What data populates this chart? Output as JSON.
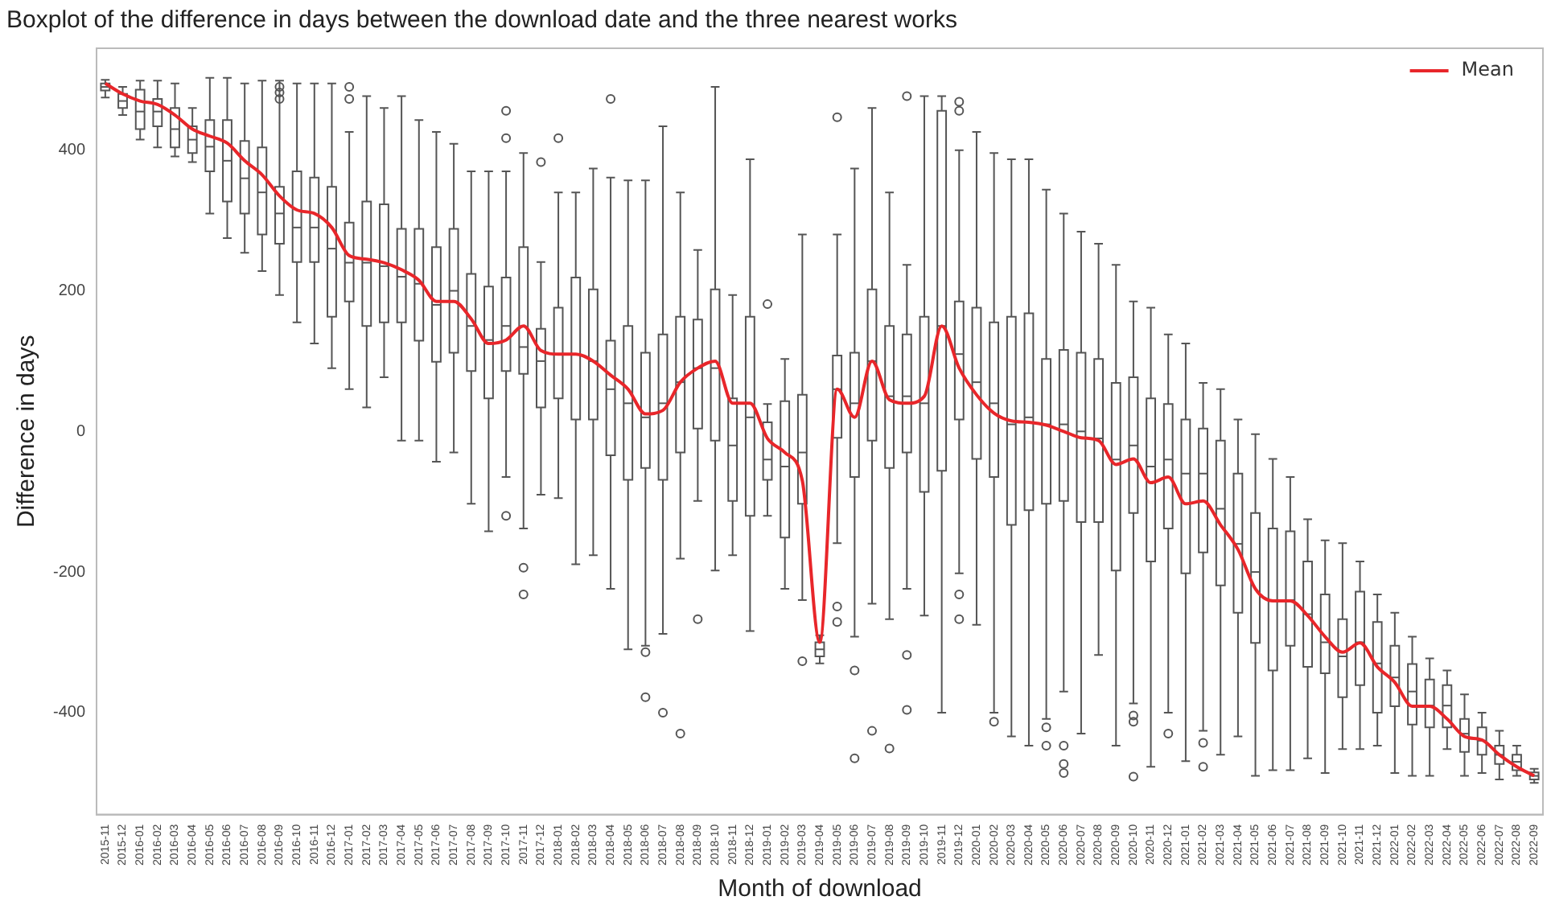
{
  "chart_data": {
    "type": "box",
    "title": "Boxplot of the difference in days between the download date and the three nearest works",
    "xlabel": "Month of download",
    "ylabel": "Difference in days",
    "categories": [
      "2015-11",
      "2015-12",
      "2016-01",
      "2016-02",
      "2016-03",
      "2016-04",
      "2016-05",
      "2016-06",
      "2016-07",
      "2016-08",
      "2016-09",
      "2016-10",
      "2016-11",
      "2016-12",
      "2017-01",
      "2017-02",
      "2017-03",
      "2017-04",
      "2017-05",
      "2017-06",
      "2017-07",
      "2017-08",
      "2017-09",
      "2017-10",
      "2017-11",
      "2017-12",
      "2018-01",
      "2018-02",
      "2018-03",
      "2018-04",
      "2018-05",
      "2018-06",
      "2018-07",
      "2018-08",
      "2018-09",
      "2018-10",
      "2018-11",
      "2018-12",
      "2019-01",
      "2019-02",
      "2019-03",
      "2019-04",
      "2019-05",
      "2019-06",
      "2019-07",
      "2019-08",
      "2019-09",
      "2019-10",
      "2019-11",
      "2019-12",
      "2020-01",
      "2020-02",
      "2020-03",
      "2020-04",
      "2020-05",
      "2020-06",
      "2020-07",
      "2020-08",
      "2020-09",
      "2020-10",
      "2020-11",
      "2020-12",
      "2021-01",
      "2021-02",
      "2021-03",
      "2021-04",
      "2021-05",
      "2021-06",
      "2021-07",
      "2021-08",
      "2021-09",
      "2021-10",
      "2021-11",
      "2021-12",
      "2022-01",
      "2022-02",
      "2022-03",
      "2022-04",
      "2022-05",
      "2022-06",
      "2022-07",
      "2022-08",
      "2022-09"
    ],
    "ylim": [
      -545,
      545
    ],
    "yticks": [
      -400,
      -200,
      0,
      200,
      400
    ],
    "legend": "top right",
    "series": [
      {
        "type": "box",
        "color": "#555555",
        "boxes": [
          {
            "low": 475,
            "q1": 485,
            "median": 490,
            "q3": 495,
            "high": 500
          },
          {
            "low": 450,
            "q1": 460,
            "median": 470,
            "q3": 480,
            "high": 490
          },
          {
            "low": 415,
            "q1": 430,
            "median": 455,
            "q3": 486,
            "high": 499
          },
          {
            "low": 404,
            "q1": 434,
            "median": 455,
            "q3": 473,
            "high": 499
          },
          {
            "low": 391,
            "q1": 404,
            "median": 430,
            "q3": 460,
            "high": 495
          },
          {
            "low": 383,
            "q1": 396,
            "median": 415,
            "q3": 434,
            "high": 460
          },
          {
            "low": 310,
            "q1": 370,
            "median": 405,
            "q3": 443,
            "high": 503
          },
          {
            "low": 275,
            "q1": 327,
            "median": 385,
            "q3": 443,
            "high": 503
          },
          {
            "low": 254,
            "q1": 310,
            "median": 360,
            "q3": 413,
            "high": 495
          },
          {
            "low": 228,
            "q1": 280,
            "median": 340,
            "q3": 404,
            "high": 499
          },
          {
            "low": 194,
            "q1": 267,
            "median": 310,
            "q3": 348,
            "high": 499,
            "outliers": [
              490,
              482,
              473
            ]
          },
          {
            "low": 155,
            "q1": 241,
            "median": 290,
            "q3": 370,
            "high": 495
          },
          {
            "low": 125,
            "q1": 241,
            "median": 290,
            "q3": 361,
            "high": 495
          },
          {
            "low": 90,
            "q1": 163,
            "median": 260,
            "q3": 348,
            "high": 495
          },
          {
            "low": 60,
            "q1": 185,
            "median": 240,
            "q3": 297,
            "high": 426,
            "outliers": [
              490,
              473
            ]
          },
          {
            "low": 34,
            "q1": 150,
            "median": 240,
            "q3": 327,
            "high": 477
          },
          {
            "low": 77,
            "q1": 155,
            "median": 235,
            "q3": 323,
            "high": 460
          },
          {
            "low": -13,
            "q1": 155,
            "median": 220,
            "q3": 288,
            "high": 477
          },
          {
            "low": -13,
            "q1": 129,
            "median": 210,
            "q3": 288,
            "high": 443
          },
          {
            "low": -43,
            "q1": 99,
            "median": 180,
            "q3": 262,
            "high": 426
          },
          {
            "low": -30,
            "q1": 112,
            "median": 200,
            "q3": 288,
            "high": 409
          },
          {
            "low": -103,
            "q1": 86,
            "median": 150,
            "q3": 224,
            "high": 370
          },
          {
            "low": -142,
            "q1": 47,
            "median": 130,
            "q3": 206,
            "high": 370
          },
          {
            "low": -65,
            "q1": 86,
            "median": 150,
            "q3": 219,
            "high": 370,
            "outliers": [
              456,
              417,
              -120
            ]
          },
          {
            "low": -138,
            "q1": 82,
            "median": 120,
            "q3": 262,
            "high": 396,
            "outliers": [
              -194,
              -232
            ]
          },
          {
            "low": -90,
            "q1": 34,
            "median": 100,
            "q3": 146,
            "high": 241,
            "outliers": [
              383
            ]
          },
          {
            "low": -95,
            "q1": 47,
            "median": 110,
            "q3": 176,
            "high": 340,
            "outliers": [
              417
            ]
          },
          {
            "low": -189,
            "q1": 17,
            "median": 110,
            "q3": 219,
            "high": 340
          },
          {
            "low": -176,
            "q1": 17,
            "median": 100,
            "q3": 202,
            "high": 374
          },
          {
            "low": -224,
            "q1": -34,
            "median": 60,
            "q3": 129,
            "high": 361,
            "outliers": [
              473
            ]
          },
          {
            "low": -310,
            "q1": -69,
            "median": 40,
            "q3": 150,
            "high": 357
          },
          {
            "low": -305,
            "q1": -52,
            "median": 20,
            "q3": 112,
            "high": 357,
            "outliers": [
              -314,
              -378
            ]
          },
          {
            "low": -288,
            "q1": -69,
            "median": 40,
            "q3": 138,
            "high": 434,
            "outliers": [
              -400
            ]
          },
          {
            "low": -181,
            "q1": -30,
            "median": 70,
            "q3": 163,
            "high": 340,
            "outliers": [
              -430
            ]
          },
          {
            "low": -99,
            "q1": 4,
            "median": 90,
            "q3": 159,
            "high": 258,
            "outliers": [
              -267
            ]
          },
          {
            "low": -198,
            "q1": -13,
            "median": 90,
            "q3": 202,
            "high": 490
          },
          {
            "low": -176,
            "q1": -99,
            "median": -20,
            "q3": 47,
            "high": 194
          },
          {
            "low": -284,
            "q1": -120,
            "median": 20,
            "q3": 163,
            "high": 387
          },
          {
            "low": -120,
            "q1": -69,
            "median": -40,
            "q3": 13,
            "high": 39,
            "outliers": [
              181
            ]
          },
          {
            "low": -224,
            "q1": -151,
            "median": -50,
            "q3": 43,
            "high": 103
          },
          {
            "low": -240,
            "q1": -103,
            "median": -30,
            "q3": 52,
            "high": 280,
            "outliers": [
              -327
            ]
          },
          {
            "low": -330,
            "q1": -320,
            "median": -310,
            "q3": -300,
            "high": -290
          },
          {
            "low": -159,
            "q1": -9,
            "median": 60,
            "q3": 108,
            "high": 280,
            "outliers": [
              447,
              -249,
              -271
            ]
          },
          {
            "low": -292,
            "q1": -65,
            "median": 40,
            "q3": 112,
            "high": 374,
            "outliers": [
              -340,
              -465
            ]
          },
          {
            "low": -245,
            "q1": -13,
            "median": 100,
            "q3": 202,
            "high": 460,
            "outliers": [
              -426
            ]
          },
          {
            "low": -267,
            "q1": -52,
            "median": 50,
            "q3": 150,
            "high": 340,
            "outliers": [
              -451
            ]
          },
          {
            "low": -224,
            "q1": -30,
            "median": 50,
            "q3": 138,
            "high": 237,
            "outliers": [
              477,
              -318,
              -396
            ]
          },
          {
            "low": -262,
            "q1": -86,
            "median": 40,
            "q3": 163,
            "high": 477
          },
          {
            "low": -400,
            "q1": -56,
            "median": 150,
            "q3": 456,
            "high": 477
          },
          {
            "low": -202,
            "q1": 17,
            "median": 110,
            "q3": 185,
            "high": 400,
            "outliers": [
              469,
              456,
              -232,
              -267
            ]
          },
          {
            "low": -275,
            "q1": -39,
            "median": 70,
            "q3": 176,
            "high": 426
          },
          {
            "low": -400,
            "q1": -65,
            "median": 40,
            "q3": 155,
            "high": 396,
            "outliers": [
              -413
            ]
          },
          {
            "low": -434,
            "q1": -133,
            "median": 10,
            "q3": 163,
            "high": 387
          },
          {
            "low": -447,
            "q1": -112,
            "median": 20,
            "q3": 168,
            "high": 387
          },
          {
            "low": -409,
            "q1": -103,
            "median": 10,
            "q3": 103,
            "high": 344,
            "outliers": [
              -421,
              -447
            ]
          },
          {
            "low": -370,
            "q1": -99,
            "median": 10,
            "q3": 116,
            "high": 310,
            "outliers": [
              -447,
              -473,
              -486
            ]
          },
          {
            "low": -430,
            "q1": -129,
            "median": 0,
            "q3": 112,
            "high": 284
          },
          {
            "low": -318,
            "q1": -129,
            "median": -10,
            "q3": 103,
            "high": 267
          },
          {
            "low": -447,
            "q1": -198,
            "median": -40,
            "q3": 69,
            "high": 237
          },
          {
            "low": -387,
            "q1": -116,
            "median": -20,
            "q3": 77,
            "high": 185,
            "outliers": [
              -404,
              -413,
              -491
            ]
          },
          {
            "low": -477,
            "q1": -185,
            "median": -50,
            "q3": 47,
            "high": 176
          },
          {
            "low": -400,
            "q1": -138,
            "median": -40,
            "q3": 39,
            "high": 138,
            "outliers": [
              -430
            ]
          },
          {
            "low": -469,
            "q1": -202,
            "median": -60,
            "q3": 17,
            "high": 125
          },
          {
            "low": -426,
            "q1": -172,
            "median": -60,
            "q3": 4,
            "high": 69,
            "outliers": [
              -443,
              -477
            ]
          },
          {
            "low": -460,
            "q1": -219,
            "median": -110,
            "q3": -13,
            "high": 60
          },
          {
            "low": -434,
            "q1": -258,
            "median": -160,
            "q3": -60,
            "high": 17
          },
          {
            "low": -490,
            "q1": -301,
            "median": -200,
            "q3": -116,
            "high": -4
          },
          {
            "low": -482,
            "q1": -340,
            "median": -240,
            "q3": -138,
            "high": -39
          },
          {
            "low": -482,
            "q1": -305,
            "median": -240,
            "q3": -142,
            "high": -65
          },
          {
            "low": -465,
            "q1": -335,
            "median": -260,
            "q3": -185,
            "high": -125
          },
          {
            "low": -486,
            "q1": -344,
            "median": -300,
            "q3": -232,
            "high": -155
          },
          {
            "low": -452,
            "q1": -378,
            "median": -320,
            "q3": -267,
            "high": -159
          },
          {
            "low": -452,
            "q1": -361,
            "median": -300,
            "q3": -228,
            "high": -185
          },
          {
            "low": -447,
            "q1": -400,
            "median": -330,
            "q3": -271,
            "high": -232
          },
          {
            "low": -486,
            "q1": -391,
            "median": -350,
            "q3": -305,
            "high": -258
          },
          {
            "low": -490,
            "q1": -417,
            "median": -370,
            "q3": -331,
            "high": -292
          },
          {
            "low": -490,
            "q1": -421,
            "median": -390,
            "q3": -353,
            "high": -323
          },
          {
            "low": -452,
            "q1": -421,
            "median": -390,
            "q3": -361,
            "high": -340
          },
          {
            "low": -490,
            "q1": -456,
            "median": -430,
            "q3": -409,
            "high": -374
          },
          {
            "low": -486,
            "q1": -460,
            "median": -440,
            "q3": -421,
            "high": -400
          },
          {
            "low": -495,
            "q1": -473,
            "median": -460,
            "q3": -447,
            "high": -426
          },
          {
            "low": -490,
            "q1": -482,
            "median": -470,
            "q3": -460,
            "high": -447
          },
          {
            "low": -500,
            "q1": -495,
            "median": -490,
            "q3": -485,
            "high": -480
          }
        ]
      },
      {
        "type": "line",
        "name": "Mean",
        "color": "#e8262a",
        "values": [
          495,
          480,
          470,
          465,
          450,
          430,
          420,
          410,
          385,
          365,
          335,
          315,
          310,
          290,
          250,
          245,
          240,
          230,
          215,
          185,
          185,
          160,
          125,
          130,
          150,
          115,
          110,
          110,
          100,
          80,
          60,
          25,
          30,
          70,
          90,
          100,
          40,
          40,
          -10,
          -30,
          -70,
          -300,
          60,
          20,
          100,
          45,
          40,
          50,
          150,
          90,
          52,
          26,
          15,
          13,
          9,
          0,
          -9,
          -13,
          -47,
          -39,
          -73,
          -65,
          -103,
          -99,
          -133,
          -168,
          -224,
          -241,
          -241,
          -262,
          -292,
          -314,
          -301,
          -335,
          -357,
          -391,
          -391,
          -409,
          -434,
          -439,
          -460,
          -477,
          -490
        ]
      }
    ]
  }
}
